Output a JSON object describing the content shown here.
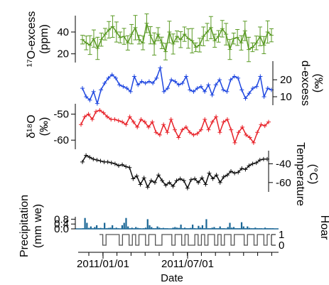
{
  "chart_data": [
    {
      "type": "line",
      "ylabel": [
        "¹⁷O-excess",
        "(ppm)"
      ],
      "y_ticks": [
        "20",
        "40"
      ],
      "ylim": [
        12,
        55
      ],
      "color": "#5a9a24",
      "axis_side": "left",
      "error_bars": true,
      "values": [
        33,
        30,
        28,
        34,
        25,
        33,
        38,
        42,
        45,
        40,
        35,
        36,
        30,
        38,
        44,
        33,
        30,
        48,
        37,
        29,
        38,
        30,
        22,
        40,
        29,
        36,
        33,
        38,
        34,
        32,
        26,
        28,
        36,
        40,
        44,
        32,
        36,
        43,
        38,
        24,
        34,
        35,
        30,
        41,
        24,
        26,
        30,
        36,
        28,
        40,
        37
      ]
    },
    {
      "type": "line",
      "ylabel": [
        "d-excess",
        "(‰)"
      ],
      "y_ticks": [
        "10",
        "20"
      ],
      "ylim": [
        5,
        31
      ],
      "color": "#1f47e0",
      "axis_side": "right",
      "values": [
        15,
        10,
        8,
        13,
        6,
        14,
        18,
        21,
        23,
        21,
        17,
        16,
        15,
        13,
        22,
        17,
        19,
        18,
        19,
        18,
        21,
        27,
        13,
        15,
        20,
        19,
        17,
        18,
        22,
        14,
        13,
        15,
        16,
        13,
        17,
        11,
        17,
        20,
        14,
        13,
        20,
        22,
        21,
        14,
        9,
        12,
        15,
        16,
        22,
        10,
        15,
        14
      ]
    },
    {
      "type": "line",
      "ylabel": [
        "δ¹⁸O",
        "(‰)"
      ],
      "y_ticks": [
        "-60",
        "-50"
      ],
      "ylim": [
        -63.5,
        -46
      ],
      "color": "#e8232a",
      "axis_side": "left",
      "values": [
        -54,
        -51,
        -50,
        -52,
        -49,
        -48.5,
        -49.5,
        -51,
        -52,
        -52,
        -52.5,
        -53,
        -54,
        -51,
        -53,
        -55,
        -52,
        -53,
        -55,
        -53,
        -57,
        -58,
        -54,
        -57,
        -52,
        -56,
        -59,
        -56,
        -55,
        -57,
        -58,
        -57.5,
        -56,
        -52,
        -56,
        -53,
        -51,
        -57,
        -53,
        -52,
        -56,
        -61,
        -57,
        -55,
        -58,
        -59,
        -61,
        -57,
        -54,
        -54.5,
        -53
      ]
    },
    {
      "type": "line",
      "ylabel": [
        "Temperature",
        "(°C)"
      ],
      "y_ticks": [
        "-60",
        "-40"
      ],
      "ylim": [
        -70,
        -26
      ],
      "color": "#111111",
      "axis_side": "right",
      "values": [
        -38,
        -31,
        -33,
        -35,
        -36,
        -37,
        -38,
        -38,
        -39,
        -40,
        -42,
        -41,
        -43,
        -44,
        -56,
        -53,
        -62,
        -55,
        -65,
        -58,
        -60,
        -52,
        -58,
        -63,
        -60,
        -64,
        -58,
        -56,
        -58,
        -66,
        -57,
        -56,
        -60,
        -55,
        -62,
        -50,
        -56,
        -52,
        -60,
        -54,
        -52,
        -48,
        -50,
        -49,
        -45,
        -46,
        -42,
        -40,
        -39,
        -36,
        -35,
        -35
      ]
    },
    {
      "type": "bar",
      "ylabel": [
        "Precipitation",
        "(mm we)"
      ],
      "y_ticks": [
        "0.0",
        "0.4",
        "0.8"
      ],
      "ylim": [
        0,
        1
      ],
      "color": "#1b6796",
      "axis_side": "left",
      "values": [
        0.02,
        0.05,
        0.9,
        0.5,
        0.08,
        0.2,
        0.05,
        0.15,
        0.3,
        0.06,
        0.08,
        0.05,
        0.5,
        0.05,
        0.08,
        0.1,
        0.3,
        0.05,
        0.1,
        0.05,
        0.02,
        0.3,
        0.5,
        0.9,
        0.2,
        0.05,
        0.1,
        0.05,
        0.15,
        0.08,
        0.05,
        0.02,
        0.05,
        0.1,
        0.8,
        0.3,
        0.15,
        0.05,
        0.05,
        0.2,
        0.1,
        0.05,
        0.08,
        0.05,
        0.05,
        0.02,
        0.02,
        0.1,
        0.15,
        0.1,
        0.08,
        0.35,
        0.05,
        0.1,
        0.05,
        0.05,
        0.08,
        0.35,
        0.05,
        0.02,
        0.25,
        0.1,
        0.3,
        0.05,
        0.8,
        0.05,
        0.05,
        0.1,
        0.15,
        0.05,
        0.05,
        0.2,
        0.05,
        0.05,
        0.02,
        0.15,
        0.5,
        0.1,
        0.15,
        0.05,
        0.05,
        0.05,
        0.55,
        0.2,
        0.05,
        0.2,
        0.08,
        0.05,
        0.05,
        0.1,
        0.05,
        0.05,
        0.05,
        0.02,
        0.1,
        0.05,
        0.05,
        0.05,
        0.05
      ]
    },
    {
      "type": "line",
      "ylabel": [
        "Hoar"
      ],
      "y_ticks": [
        "0",
        "1"
      ],
      "ylim": [
        0,
        1
      ],
      "color": "#555555",
      "axis_side": "right",
      "step": true,
      "values": [
        1,
        0,
        1,
        1,
        1,
        1,
        0,
        1,
        1,
        0,
        1,
        0,
        1,
        1,
        0,
        1,
        1,
        0,
        0,
        1,
        1,
        1,
        0,
        1,
        1,
        0,
        1,
        0,
        0,
        1,
        0,
        1,
        0,
        1,
        1,
        0,
        1,
        0,
        1,
        1,
        0,
        1,
        1,
        1,
        0,
        1,
        1,
        0,
        1,
        1,
        0,
        1
      ]
    }
  ],
  "x_axis": {
    "label": "Date",
    "tick_labels": [
      "2011/01/01",
      "2011/07/01"
    ]
  }
}
